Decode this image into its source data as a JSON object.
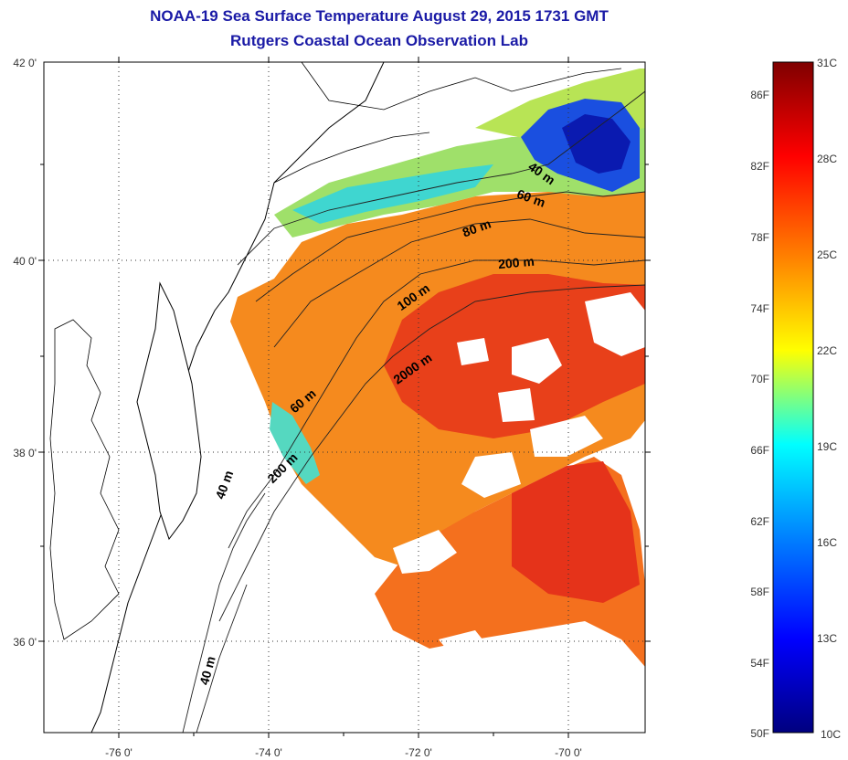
{
  "header": {
    "title_line1": "NOAA-19 Sea Surface Temperature August 29, 2015 1731 GMT",
    "title_line2": "Rutgers Coastal Ocean Observation Lab"
  },
  "map": {
    "lat_ticks": [
      "42 0'",
      "40 0'",
      "38 0'",
      "36 0'"
    ],
    "lon_ticks": [
      "-76 0'",
      "-74 0'",
      "-72 0'",
      "-70 0'"
    ],
    "isobath_labels": [
      "40 m",
      "60 m",
      "80 m",
      "200 m",
      "100 m",
      "2000 m",
      "60 m",
      "200 m",
      "40 m",
      "40 m"
    ]
  },
  "colorbar": {
    "top_label": "31C",
    "bottom_label": "10C",
    "bottom_f_label": "50F",
    "fahrenheit": [
      "86F",
      "82F",
      "78F",
      "74F",
      "70F",
      "66F",
      "62F",
      "58F",
      "54F"
    ],
    "celsius": [
      "28C",
      "25C",
      "22C",
      "19C",
      "16C",
      "13C"
    ],
    "colors": {
      "c10": "#00007f",
      "c13": "#0000ff",
      "c16": "#0080ff",
      "c19": "#00ffff",
      "c22": "#ffff00",
      "c25": "#ff8000",
      "c28": "#ff0000",
      "c31": "#7f0000"
    }
  }
}
